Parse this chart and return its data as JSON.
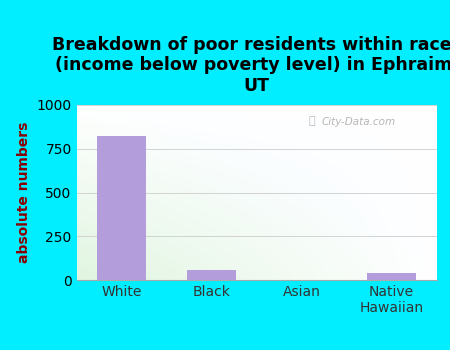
{
  "categories": [
    "White",
    "Black",
    "Asian",
    "Native\nHawaiian"
  ],
  "values": [
    825,
    55,
    0,
    40
  ],
  "bar_color": "#b39ddb",
  "title": "Breakdown of poor residents within races\n(income below poverty level) in Ephraim,\nUT",
  "ylabel": "absolute numbers",
  "ylim": [
    0,
    1000
  ],
  "yticks": [
    0,
    250,
    500,
    750,
    1000
  ],
  "title_fontsize": 12.5,
  "label_fontsize": 10,
  "tick_fontsize": 10,
  "bg_outer": "#00eeff",
  "watermark": "City-Data.com",
  "grid_color": "#cccccc",
  "ylabel_color": "#8B0000"
}
